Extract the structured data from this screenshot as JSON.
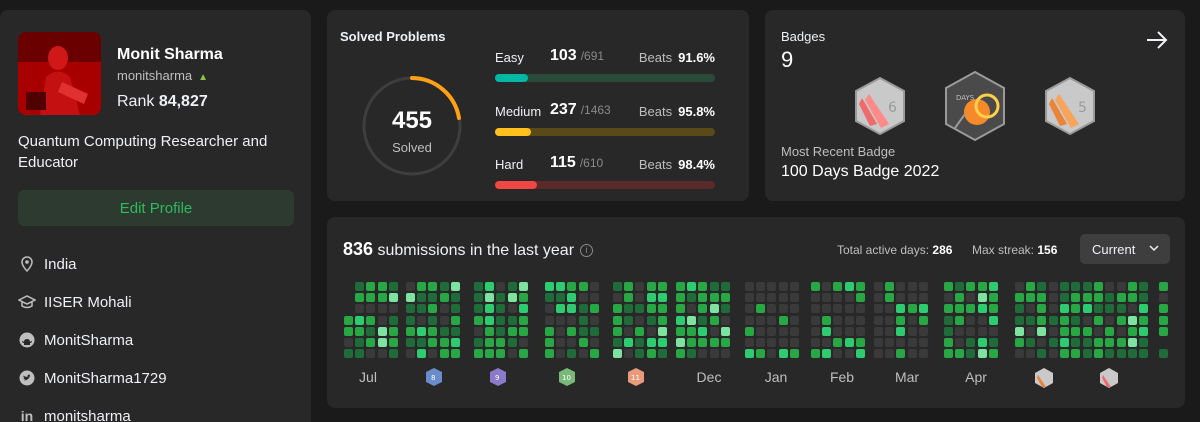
{
  "profile": {
    "name": "Monit Sharma",
    "username": "monitsharma",
    "rank_label": "Rank",
    "rank": "84,827",
    "bio": "Quantum Computing Researcher and Educator",
    "edit_label": "Edit Profile",
    "location": "India",
    "school": "IISER Mohali",
    "github": "MonitSharma",
    "twitter": "MonitSharma1729",
    "linkedin": "monitsharma"
  },
  "solved": {
    "title": "Solved Problems",
    "total": "455",
    "total_label": "Solved",
    "difficulties": [
      {
        "name": "Easy",
        "solved": "103",
        "total": "/691",
        "beats_label": "Beats",
        "beats": "91.6%",
        "fraction": 0.149,
        "color": "#00b8a3",
        "track": "#2a4a3a"
      },
      {
        "name": "Medium",
        "solved": "237",
        "total": "/1463",
        "beats_label": "Beats",
        "beats": "95.8%",
        "fraction": 0.162,
        "color": "#ffc01e",
        "track": "#5a4a1a"
      },
      {
        "name": "Hard",
        "solved": "115",
        "total": "/610",
        "beats_label": "Beats",
        "beats": "98.4%",
        "fraction": 0.189,
        "color": "#ef4743",
        "track": "#5a2a2a"
      }
    ]
  },
  "badges": {
    "title": "Badges",
    "count": "9",
    "recent_label": "Most Recent Badge",
    "recent_name": "100 Days Badge 2022"
  },
  "submissions": {
    "count": "836",
    "label": "submissions in the last year",
    "active_label": "Total active days:",
    "active_days": "286",
    "streak_label": "Max streak:",
    "max_streak": "156",
    "select_value": "Current",
    "months": [
      "Jul",
      "Dec",
      "Jan",
      "Feb",
      "Mar",
      "Apr"
    ]
  },
  "colors": {
    "accent_green": "#2cbb5d",
    "easy": "#00b8a3",
    "medium": "#ffc01e",
    "hard": "#ef4743"
  }
}
